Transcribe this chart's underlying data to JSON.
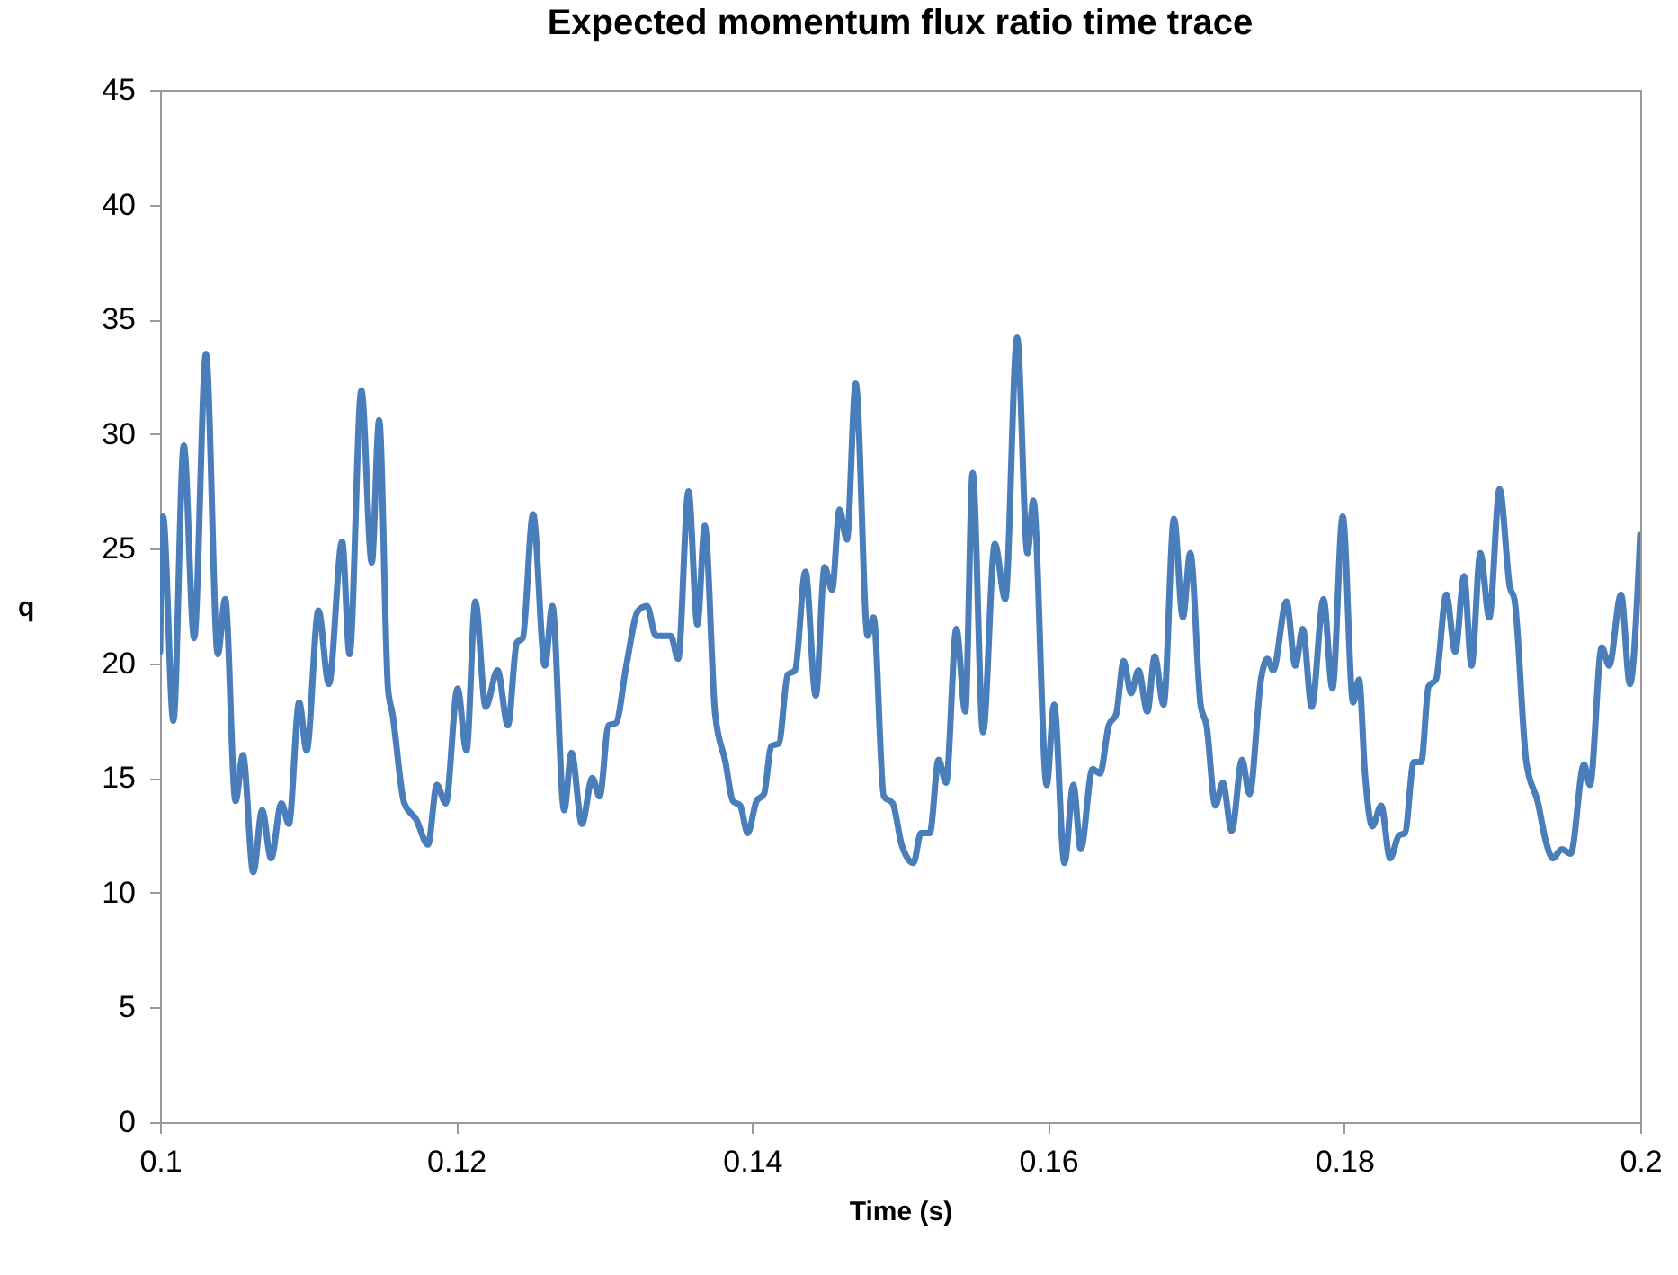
{
  "chart_data": {
    "type": "line",
    "title": "Expected momentum flux ratio time trace",
    "xlabel": "Time (s)",
    "ylabel": "q",
    "xlim": [
      0.1,
      0.2
    ],
    "xticks": [
      0.1,
      0.12,
      0.14,
      0.16,
      0.18,
      0.2
    ],
    "ylim": [
      0,
      45
    ],
    "yticks": [
      0,
      5,
      10,
      15,
      20,
      25,
      30,
      35,
      40,
      45
    ],
    "grid": false,
    "marker": "none",
    "line_style": "solid",
    "series": [
      {
        "color": "#4a7ebb",
        "x": [
          0.1,
          0.1002,
          0.1009,
          0.1016,
          0.1023,
          0.1031,
          0.1039,
          0.1044,
          0.1051,
          0.1056,
          0.1063,
          0.1069,
          0.1075,
          0.1082,
          0.1087,
          0.1094,
          0.1099,
          0.1107,
          0.1114,
          0.1123,
          0.1128,
          0.1136,
          0.1143,
          0.1148,
          0.1154,
          0.1157,
          0.1165,
          0.1173,
          0.1181,
          0.1187,
          0.1193,
          0.1201,
          0.1207,
          0.1213,
          0.122,
          0.1228,
          0.1235,
          0.1241,
          0.1245,
          0.1252,
          0.126,
          0.1265,
          0.1273,
          0.1278,
          0.1285,
          0.1292,
          0.1297,
          0.1303,
          0.1308,
          0.1315,
          0.1323,
          0.1329,
          0.1335,
          0.1345,
          0.135,
          0.1357,
          0.1363,
          0.1368,
          0.1375,
          0.1382,
          0.1387,
          0.1392,
          0.1397,
          0.1403,
          0.1408,
          0.1413,
          0.1418,
          0.1424,
          0.1429,
          0.1436,
          0.1443,
          0.1449,
          0.1454,
          0.1459,
          0.1464,
          0.147,
          0.1478,
          0.1482,
          0.1489,
          0.1495,
          0.1501,
          0.1509,
          0.1514,
          0.152,
          0.1526,
          0.1531,
          0.1538,
          0.1544,
          0.1549,
          0.1556,
          0.1564,
          0.1571,
          0.1579,
          0.1586,
          0.159,
          0.1599,
          0.1604,
          0.1611,
          0.1617,
          0.1622,
          0.163,
          0.1635,
          0.1641,
          0.1646,
          0.1651,
          0.1656,
          0.1661,
          0.1667,
          0.1672,
          0.1678,
          0.1685,
          0.1691,
          0.1696,
          0.1703,
          0.1707,
          0.1713,
          0.1718,
          0.1724,
          0.1731,
          0.1736,
          0.1744,
          0.1748,
          0.1752,
          0.1761,
          0.1767,
          0.1772,
          0.1778,
          0.1786,
          0.1792,
          0.1799,
          0.1806,
          0.181,
          0.1814,
          0.1819,
          0.1825,
          0.1831,
          0.1837,
          0.1841,
          0.1847,
          0.1852,
          0.1857,
          0.1862,
          0.1869,
          0.1875,
          0.1881,
          0.1886,
          0.1892,
          0.1898,
          0.1905,
          0.1912,
          0.1915,
          0.1923,
          0.1931,
          0.1936,
          0.1941,
          0.1947,
          0.1953,
          0.1962,
          0.1966,
          0.1974,
          0.1979,
          0.1987,
          0.1993,
          0.2
        ],
        "values": [
          20.5,
          26.4,
          17.5,
          29.5,
          21.1,
          33.5,
          20.4,
          22.8,
          14.0,
          16.0,
          10.9,
          13.6,
          11.5,
          13.9,
          13.0,
          18.3,
          16.2,
          22.3,
          19.1,
          25.3,
          20.4,
          31.9,
          24.4,
          30.6,
          18.9,
          17.8,
          13.9,
          13.2,
          12.1,
          14.7,
          13.9,
          18.9,
          16.2,
          22.7,
          18.1,
          19.7,
          17.3,
          20.9,
          21.1,
          26.5,
          19.9,
          22.5,
          13.6,
          16.1,
          13.0,
          15.0,
          14.2,
          17.3,
          17.4,
          19.9,
          22.3,
          22.5,
          21.2,
          21.2,
          20.2,
          27.5,
          21.7,
          26.0,
          17.8,
          15.7,
          14.0,
          13.8,
          12.6,
          14.0,
          14.3,
          16.4,
          16.5,
          19.5,
          19.7,
          24.0,
          18.6,
          24.2,
          23.2,
          26.7,
          25.4,
          32.2,
          21.2,
          22.0,
          14.2,
          13.9,
          12.1,
          11.3,
          12.6,
          12.6,
          15.8,
          14.8,
          21.5,
          17.9,
          28.3,
          17.0,
          25.2,
          22.8,
          34.2,
          24.8,
          27.1,
          14.7,
          18.2,
          11.3,
          14.7,
          11.9,
          15.4,
          15.2,
          17.3,
          17.8,
          20.1,
          18.7,
          19.7,
          17.9,
          20.3,
          18.2,
          26.3,
          22.0,
          24.8,
          18.2,
          17.3,
          13.8,
          14.8,
          12.7,
          15.8,
          14.3,
          19.4,
          20.2,
          19.7,
          22.7,
          19.9,
          21.5,
          18.1,
          22.8,
          18.9,
          26.4,
          18.3,
          19.3,
          15.2,
          12.9,
          13.8,
          11.5,
          12.5,
          12.6,
          15.7,
          15.7,
          19.0,
          19.3,
          23.0,
          20.5,
          23.8,
          19.9,
          24.8,
          22.0,
          27.6,
          23.3,
          22.8,
          15.7,
          13.9,
          12.3,
          11.5,
          11.9,
          11.7,
          15.6,
          14.7,
          20.7,
          19.9,
          23.0,
          19.1,
          25.6
        ]
      }
    ]
  }
}
